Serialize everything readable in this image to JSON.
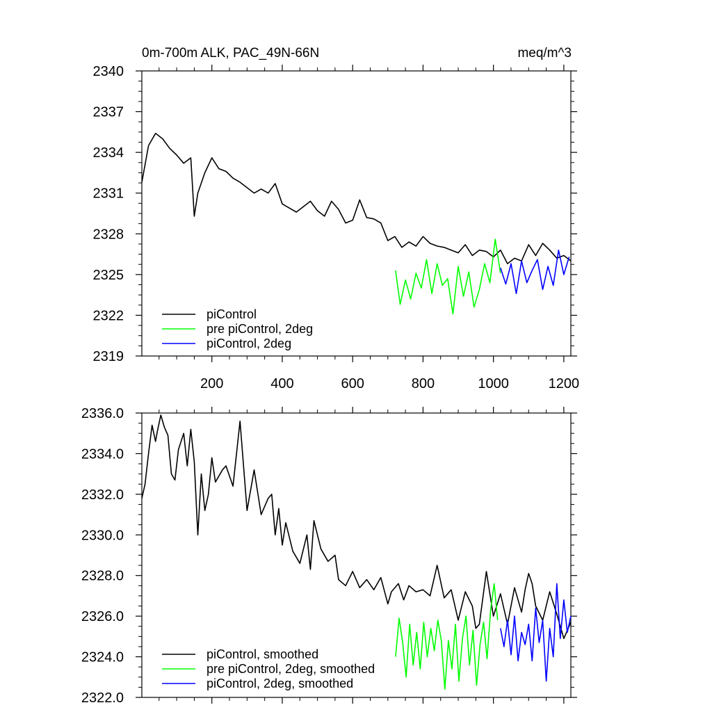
{
  "chart_data": [
    {
      "type": "line",
      "title": "0m-700m ALK, PAC_49N-66N",
      "units": "meq/m^3",
      "xlim": [
        1,
        1220
      ],
      "ylim": [
        2319,
        2340
      ],
      "yticks": [
        2319,
        2322,
        2325,
        2328,
        2331,
        2334,
        2337,
        2340
      ],
      "ytick_labels": [
        "2319",
        "2322",
        "2325",
        "2328",
        "2331",
        "2334",
        "2337",
        "2340"
      ],
      "xticks": [
        200,
        400,
        600,
        800,
        1000,
        1200
      ],
      "xtick_labels": [
        "200",
        "400",
        "600",
        "800",
        "1000",
        "1200"
      ],
      "legend_position": "bottom-left",
      "series": [
        {
          "name": "piControl",
          "color": "#000000",
          "x": [
            1,
            20,
            40,
            60,
            80,
            100,
            120,
            140,
            150,
            160,
            180,
            200,
            220,
            240,
            260,
            280,
            300,
            320,
            340,
            360,
            380,
            400,
            420,
            440,
            460,
            480,
            500,
            520,
            540,
            560,
            580,
            600,
            620,
            640,
            660,
            680,
            700,
            720,
            740,
            760,
            780,
            800,
            820,
            840,
            860,
            880,
            900,
            920,
            940,
            960,
            980,
            1000,
            1020,
            1040,
            1060,
            1080,
            1100,
            1120,
            1140,
            1160,
            1180,
            1200,
            1220
          ],
          "values": [
            2331.8,
            2334.5,
            2335.4,
            2335.0,
            2334.3,
            2333.8,
            2333.2,
            2333.6,
            2329.3,
            2331.0,
            2332.5,
            2333.6,
            2332.8,
            2332.6,
            2332.1,
            2331.8,
            2331.4,
            2331.0,
            2331.3,
            2331.0,
            2331.7,
            2330.2,
            2329.9,
            2329.6,
            2330.0,
            2330.4,
            2329.7,
            2329.3,
            2330.4,
            2329.8,
            2328.8,
            2329.0,
            2330.5,
            2329.2,
            2329.1,
            2328.8,
            2327.5,
            2327.8,
            2327.0,
            2327.4,
            2327.1,
            2327.8,
            2327.3,
            2327.1,
            2327.0,
            2326.8,
            2326.6,
            2327.2,
            2326.4,
            2326.8,
            2326.7,
            2326.3,
            2326.8,
            2325.8,
            2326.2,
            2326.0,
            2327.2,
            2326.4,
            2327.3,
            2326.8,
            2326.2,
            2326.4,
            2326.0
          ]
        },
        {
          "name": "pre piControl, 2deg",
          "color": "#00ff00",
          "x": [
            722,
            735,
            750,
            765,
            780,
            795,
            810,
            825,
            840,
            855,
            870,
            885,
            900,
            915,
            930,
            945,
            960,
            975,
            990,
            1005,
            1020
          ],
          "values": [
            2325.3,
            2322.8,
            2324.6,
            2323.2,
            2325.1,
            2324.0,
            2326.1,
            2323.6,
            2325.8,
            2324.2,
            2324.7,
            2322.1,
            2325.6,
            2323.4,
            2325.2,
            2322.6,
            2323.9,
            2325.8,
            2324.4,
            2327.6,
            2325.1
          ]
        },
        {
          "name": "piControl, 2deg",
          "color": "#0000ff",
          "x": [
            1020,
            1035,
            1050,
            1065,
            1080,
            1095,
            1110,
            1125,
            1140,
            1155,
            1170,
            1185,
            1200,
            1215
          ],
          "values": [
            2325.5,
            2324.3,
            2325.8,
            2323.6,
            2326.0,
            2324.4,
            2325.3,
            2326.1,
            2323.9,
            2325.6,
            2324.2,
            2326.8,
            2325.0,
            2326.3
          ]
        }
      ]
    },
    {
      "type": "line",
      "xlim": [
        1,
        1220
      ],
      "ylim": [
        2322,
        2336
      ],
      "yticks": [
        2322,
        2324,
        2326,
        2328,
        2330,
        2332,
        2334,
        2336
      ],
      "ytick_labels": [
        "2322.0",
        "2324.0",
        "2326.0",
        "2328.0",
        "2330.0",
        "2332.0",
        "2334.0",
        "2336.0"
      ],
      "legend_position": "bottom-left",
      "series": [
        {
          "name": "piControl, smoothed",
          "color": "#000000",
          "x": [
            1,
            10,
            20,
            30,
            40,
            45,
            55,
            65,
            75,
            85,
            95,
            105,
            120,
            130,
            140,
            150,
            160,
            170,
            180,
            190,
            200,
            210,
            230,
            240,
            260,
            280,
            300,
            320,
            340,
            360,
            370,
            380,
            390,
            400,
            410,
            430,
            450,
            470,
            480,
            490,
            510,
            530,
            550,
            560,
            580,
            600,
            620,
            640,
            660,
            680,
            700,
            710,
            730,
            745,
            760,
            780,
            800,
            820,
            840,
            860,
            880,
            900,
            920,
            940,
            950,
            960,
            980,
            1000,
            1020,
            1040,
            1060,
            1080,
            1090,
            1100,
            1110,
            1120,
            1140,
            1160,
            1180,
            1200,
            1220
          ],
          "values": [
            2331.8,
            2332.5,
            2334.0,
            2335.4,
            2334.6,
            2335.1,
            2335.9,
            2335.3,
            2334.9,
            2333.0,
            2332.7,
            2334.2,
            2335.0,
            2333.4,
            2335.2,
            2333.6,
            2330.0,
            2333.0,
            2331.2,
            2332.0,
            2333.8,
            2332.6,
            2333.2,
            2333.4,
            2332.4,
            2335.6,
            2331.2,
            2333.2,
            2331.0,
            2331.8,
            2332.0,
            2330.0,
            2331.3,
            2329.5,
            2330.6,
            2329.2,
            2328.6,
            2330.0,
            2328.3,
            2330.7,
            2329.3,
            2328.7,
            2329.0,
            2327.8,
            2327.5,
            2328.2,
            2327.4,
            2327.8,
            2327.3,
            2327.9,
            2326.6,
            2327.2,
            2327.6,
            2326.8,
            2327.5,
            2327.2,
            2327.3,
            2327.0,
            2328.5,
            2326.9,
            2327.3,
            2325.8,
            2327.2,
            2326.5,
            2325.4,
            2325.6,
            2328.2,
            2326.0,
            2327.1,
            2325.6,
            2327.4,
            2326.2,
            2327.3,
            2328.1,
            2327.6,
            2326.5,
            2325.8,
            2327.2,
            2326.1,
            2324.9,
            2325.7
          ]
        },
        {
          "name": "pre piControl, 2deg, smoothed",
          "color": "#00ff00",
          "x": [
            722,
            732,
            742,
            752,
            762,
            772,
            782,
            792,
            802,
            812,
            822,
            832,
            842,
            852,
            862,
            872,
            882,
            892,
            902,
            912,
            922,
            932,
            942,
            952,
            962,
            972,
            982,
            992,
            1002,
            1012
          ],
          "values": [
            2324.0,
            2325.9,
            2324.7,
            2323.0,
            2325.6,
            2323.6,
            2325.2,
            2323.4,
            2325.7,
            2324.0,
            2325.4,
            2324.3,
            2325.8,
            2324.8,
            2322.4,
            2324.8,
            2323.4,
            2325.6,
            2322.8,
            2324.9,
            2326.0,
            2323.6,
            2325.3,
            2322.6,
            2324.6,
            2325.7,
            2323.9,
            2326.3,
            2327.6,
            2325.8
          ]
        },
        {
          "name": "piControl, 2deg, smoothed",
          "color": "#0000ff",
          "x": [
            1020,
            1030,
            1040,
            1050,
            1060,
            1070,
            1080,
            1090,
            1100,
            1110,
            1120,
            1130,
            1140,
            1150,
            1160,
            1170,
            1180,
            1190,
            1200,
            1210,
            1220
          ],
          "values": [
            2325.4,
            2324.5,
            2325.8,
            2324.1,
            2326.0,
            2323.8,
            2325.2,
            2324.6,
            2325.6,
            2323.8,
            2326.4,
            2324.7,
            2325.8,
            2322.8,
            2325.4,
            2324.0,
            2327.6,
            2324.9,
            2326.8,
            2325.2,
            2326.0
          ]
        }
      ]
    }
  ]
}
